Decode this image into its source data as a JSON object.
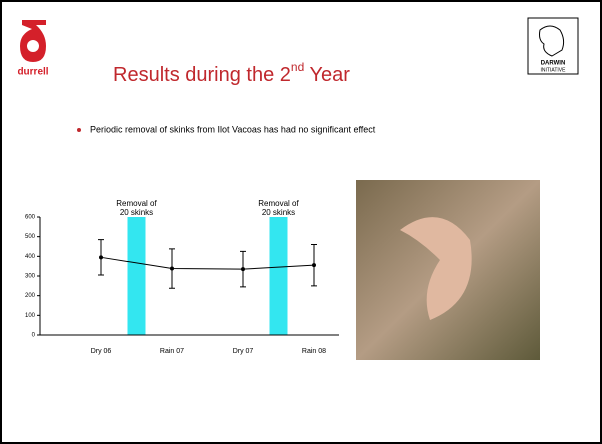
{
  "logo": "durrell",
  "partner_logo": {
    "line1": "DARWIN",
    "line2": "INITIATIVE"
  },
  "title": {
    "text": "Results during the 2",
    "sup": "nd",
    "tail": " Year"
  },
  "bullet": "Periodic removal of skinks from Ilot Vacoas has had no significant effect",
  "chart_data": {
    "type": "line",
    "categories": [
      "Dry 06",
      "Rain 07",
      "Dry 07",
      "Rain 08"
    ],
    "series": [
      {
        "values": [
          395,
          338,
          335,
          355
        ],
        "errors": [
          90,
          100,
          90,
          105
        ],
        "color": "#000000"
      }
    ],
    "ylim": [
      0,
      600
    ],
    "yticks": [
      0,
      100,
      200,
      300,
      400,
      500,
      600
    ],
    "annotations": [
      {
        "line1": "Removal of",
        "line2": "20 skinks",
        "color": "#33e6f0"
      },
      {
        "line1": "Removal of",
        "line2": "20 skinks",
        "color": "#33e6f0"
      }
    ]
  }
}
